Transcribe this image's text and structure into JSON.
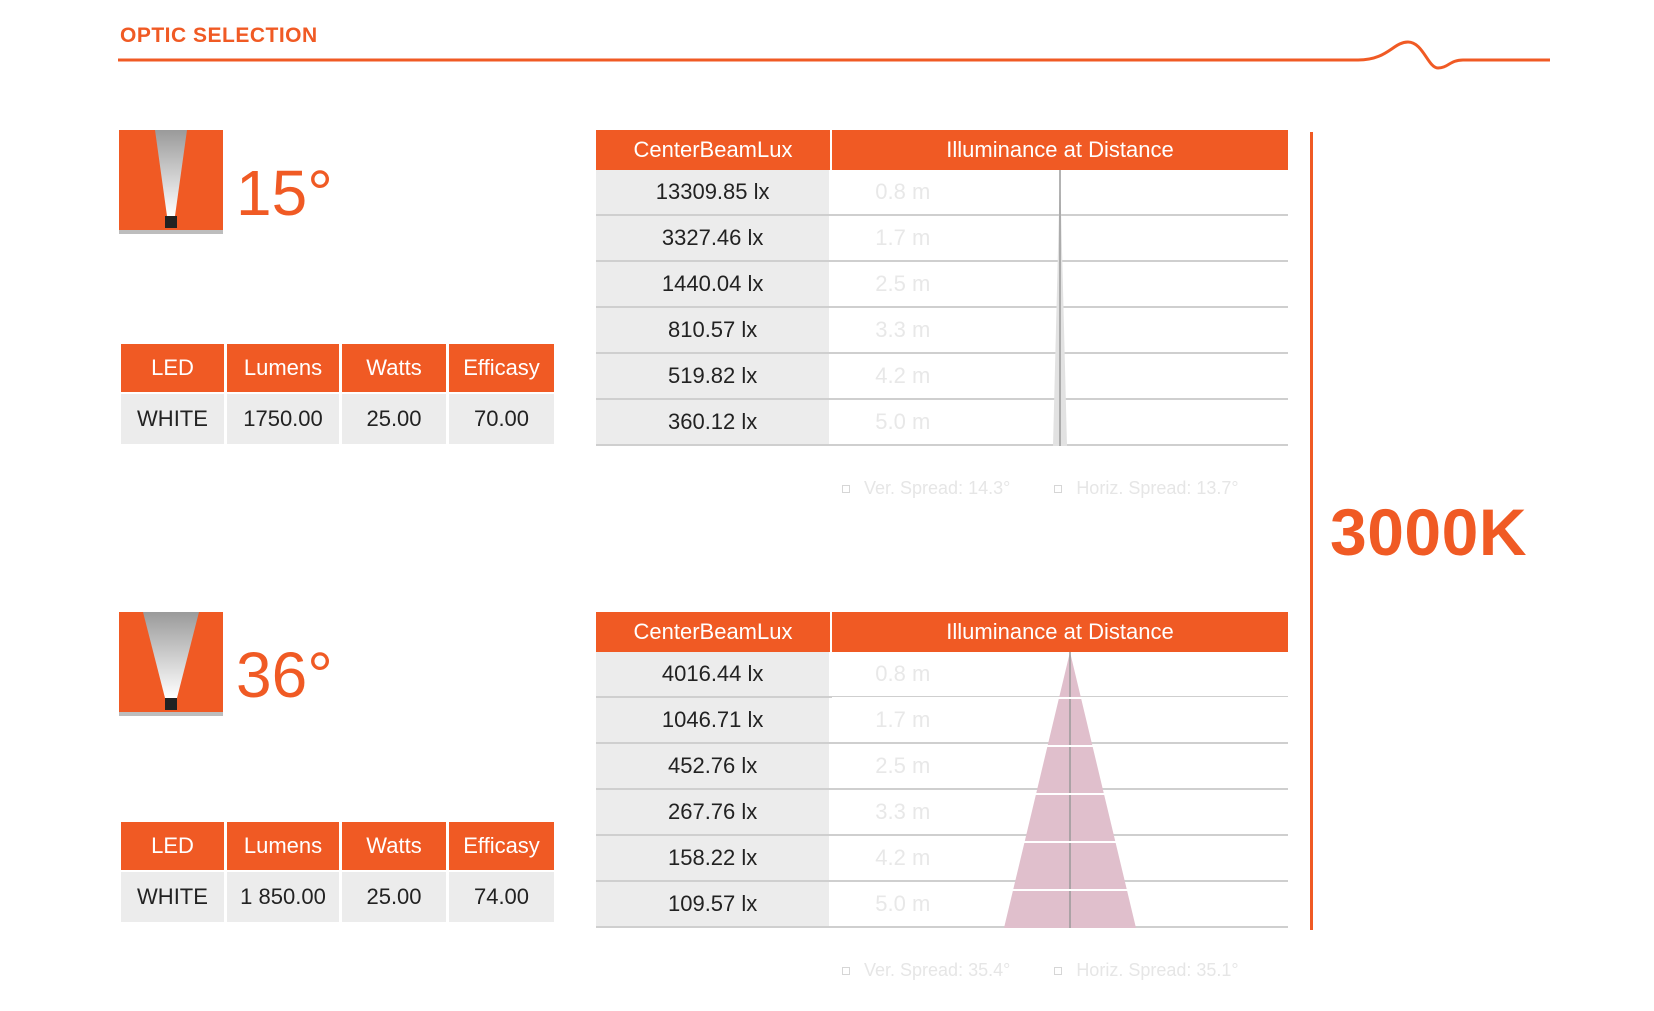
{
  "header": {
    "title": "OPTIC SELECTION"
  },
  "cct": "3000K",
  "colors": {
    "accent": "#f05a24",
    "cell_bg": "#ececec",
    "beam_36": "#e0bfcc"
  },
  "optics": [
    {
      "angle": "15°",
      "specs_headers": [
        "LED",
        "Lumens",
        "Watts",
        "Efficasy"
      ],
      "specs_values": [
        "WHITE",
        "1750.00",
        "25.00",
        "70.00"
      ],
      "lux_headers": [
        "CenterBeamLux",
        "Illuminance at Distance"
      ],
      "rows": [
        {
          "lux": "13309.85 lx",
          "distance": "0.8 m"
        },
        {
          "lux": "3327.46 lx",
          "distance": "1.7 m"
        },
        {
          "lux": "1440.04 lx",
          "distance": "2.5 m"
        },
        {
          "lux": "810.57 lx",
          "distance": "3.3 m"
        },
        {
          "lux": "519.82 lx",
          "distance": "4.2 m"
        },
        {
          "lux": "360.12 lx",
          "distance": "5.0 m"
        }
      ],
      "ver_spread": "Ver. Spread: 14.3°",
      "horiz_spread": "Horiz. Spread: 13.7°"
    },
    {
      "angle": "36°",
      "specs_headers": [
        "LED",
        "Lumens",
        "Watts",
        "Efficasy"
      ],
      "specs_values": [
        "WHITE",
        "1 850.00",
        "25.00",
        "74.00"
      ],
      "lux_headers": [
        "CenterBeamLux",
        "Illuminance at Distance"
      ],
      "rows": [
        {
          "lux": "4016.44 lx",
          "distance": "0.8 m"
        },
        {
          "lux": "1046.71 lx",
          "distance": "1.7 m"
        },
        {
          "lux": "452.76 lx",
          "distance": "2.5 m"
        },
        {
          "lux": "267.76 lx",
          "distance": "3.3 m"
        },
        {
          "lux": "158.22 lx",
          "distance": "4.2 m"
        },
        {
          "lux": "109.57 lx",
          "distance": "5.0 m"
        }
      ],
      "ver_spread": "Ver. Spread: 35.4°",
      "horiz_spread": "Horiz. Spread: 35.1°"
    }
  ]
}
